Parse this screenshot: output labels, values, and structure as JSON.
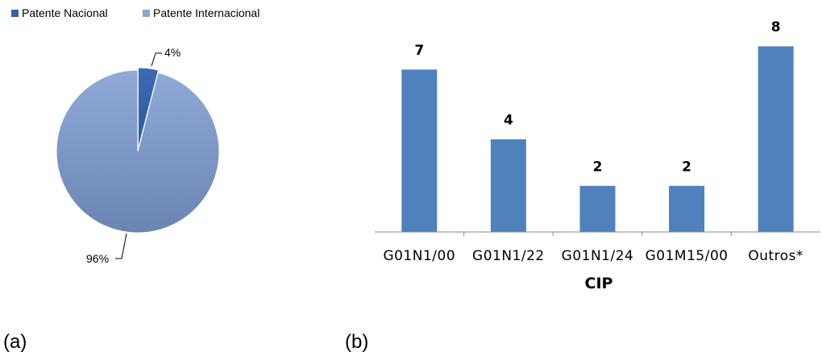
{
  "panels": {
    "a_label": "(a)",
    "b_label": "(b)"
  },
  "chart_data": [
    {
      "type": "pie",
      "legend": [
        "Patente Nacional",
        "Patente Internacional"
      ],
      "legend_position": "top-left",
      "slices": [
        {
          "label": "Patente Nacional",
          "value": 4,
          "display": "4%"
        },
        {
          "label": "Patente Internacional",
          "value": 96,
          "display": "96%"
        }
      ],
      "colors": [
        "#3562A8",
        "#8BA6D3"
      ]
    },
    {
      "type": "bar",
      "categories": [
        "G01N1/00",
        "G01N1/22",
        "G01N1/24",
        "G01M15/00",
        "Outros*"
      ],
      "values": [
        7,
        4,
        2,
        2,
        8
      ],
      "xlabel": "CIP",
      "ylabel": "",
      "ylim": [
        0,
        8.5
      ],
      "grid": false,
      "bar_color": "#4F81BD"
    }
  ]
}
